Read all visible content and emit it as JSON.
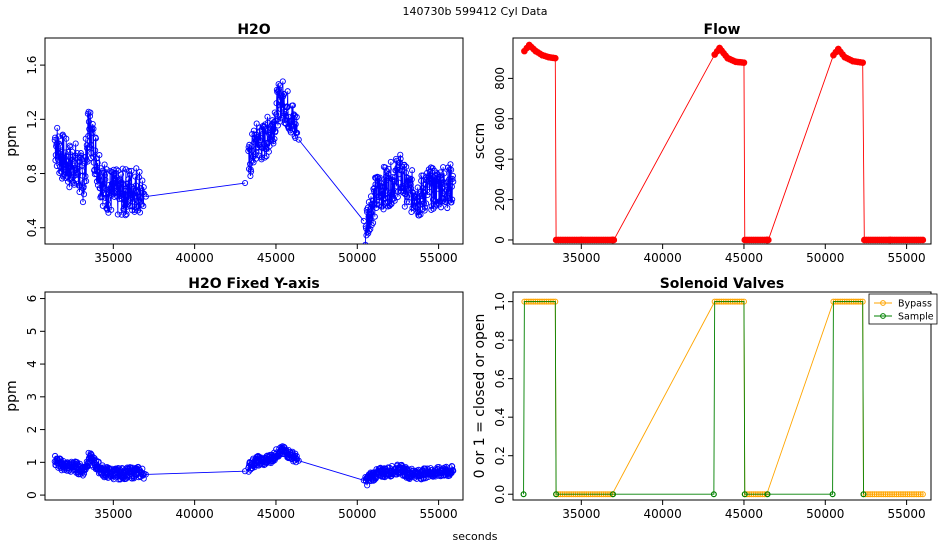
{
  "figure": {
    "suptitle": "140730b    599412   Cyl Data",
    "xlabel": "seconds"
  },
  "chart_data": [
    {
      "id": "h2o",
      "type": "scatter",
      "title": "H2O",
      "ylabel": "ppm",
      "xlabel": "",
      "xlim": [
        30800,
        56500
      ],
      "ylim": [
        0.28,
        1.8
      ],
      "xticks": [
        35000,
        40000,
        45000,
        50000,
        55000
      ],
      "yticks": [
        0.4,
        0.8,
        1.2,
        1.6
      ],
      "grid": false,
      "series": [
        {
          "color": "#0000ff",
          "marker": "open-circle",
          "line": true,
          "segments": [
            {
              "x": [
                31400,
                31700,
                32000,
                32300,
                32600,
                32900,
                33200,
                33500,
                33800,
                34100,
                34400,
                34700,
                35000,
                35300,
                35600,
                35900,
                36200,
                36500,
                36900
              ],
              "y": [
                1.05,
                0.95,
                0.9,
                0.85,
                0.88,
                0.8,
                0.75,
                1.15,
                1.0,
                0.85,
                0.72,
                0.68,
                0.66,
                0.65,
                0.66,
                0.67,
                0.68,
                0.7,
                0.65
              ]
            },
            {
              "x": [
                37000,
                43100
              ],
              "y": [
                0.63,
                0.73
              ]
            },
            {
              "x": [
                43300,
                43600,
                43900,
                44200,
                44500,
                44800,
                45100,
                45400,
                45700,
                46000,
                46300
              ],
              "y": [
                0.85,
                0.98,
                1.05,
                1.02,
                1.08,
                1.15,
                1.3,
                1.35,
                1.28,
                1.2,
                1.1
              ]
            },
            {
              "x": [
                46400,
                50400
              ],
              "y": [
                1.05,
                0.45
              ]
            },
            {
              "x": [
                50500,
                50800,
                51100,
                51400,
                51700,
                52000,
                52300,
                52600,
                52900,
                53200,
                53500,
                53800,
                54100,
                54400,
                54700,
                55000,
                55300,
                55600,
                55900
              ],
              "y": [
                0.4,
                0.55,
                0.62,
                0.68,
                0.7,
                0.72,
                0.75,
                0.8,
                0.72,
                0.65,
                0.68,
                0.62,
                0.66,
                0.7,
                0.68,
                0.7,
                0.72,
                0.7,
                0.74
              ]
            }
          ],
          "spread": [
            0.18,
            0.0,
            0.15,
            0.0,
            0.16
          ]
        }
      ]
    },
    {
      "id": "flow",
      "type": "line",
      "title": "Flow",
      "ylabel": "sccm",
      "xlabel": "",
      "xlim": [
        30800,
        56500
      ],
      "ylim": [
        -20,
        1000
      ],
      "xticks": [
        35000,
        40000,
        45000,
        50000,
        55000
      ],
      "yticks": [
        0,
        200,
        400,
        600,
        800
      ],
      "grid": false,
      "series": [
        {
          "color": "#ff0000",
          "marker": "filled-circle",
          "line": true,
          "x": [
            31500,
            31800,
            32200,
            32600,
            33000,
            33400,
            33450,
            35000,
            36900,
            37000,
            43200,
            43500,
            44000,
            44500,
            45000,
            45050,
            46400,
            46500,
            50500,
            50800,
            51200,
            51700,
            52300,
            52400,
            54000,
            56000
          ],
          "y": [
            935,
            965,
            935,
            915,
            905,
            900,
            0,
            0,
            0,
            0,
            918,
            950,
            900,
            882,
            878,
            0,
            0,
            0,
            915,
            945,
            905,
            885,
            878,
            0,
            0,
            0
          ]
        }
      ]
    },
    {
      "id": "h2o-fixed",
      "type": "scatter",
      "title": "H2O Fixed Y-axis",
      "ylabel": "ppm",
      "xlabel": "",
      "xlim": [
        30800,
        56500
      ],
      "ylim": [
        -0.15,
        6.2
      ],
      "xticks": [
        35000,
        40000,
        45000,
        50000,
        55000
      ],
      "yticks": [
        0,
        1,
        2,
        3,
        4,
        5,
        6
      ],
      "grid": false,
      "series": [
        {
          "color": "#0000ff",
          "marker": "open-circle",
          "line": true,
          "segments": [
            {
              "x": [
                31400,
                31700,
                32000,
                32300,
                32600,
                32900,
                33200,
                33500,
                33800,
                34100,
                34400,
                34700,
                35000,
                35300,
                35600,
                35900,
                36200,
                36500,
                36900
              ],
              "y": [
                1.05,
                0.95,
                0.9,
                0.85,
                0.88,
                0.8,
                0.75,
                1.15,
                1.0,
                0.85,
                0.72,
                0.68,
                0.66,
                0.65,
                0.66,
                0.67,
                0.68,
                0.7,
                0.65
              ]
            },
            {
              "x": [
                37000,
                43100
              ],
              "y": [
                0.63,
                0.73
              ]
            },
            {
              "x": [
                43300,
                43600,
                43900,
                44200,
                44500,
                44800,
                45100,
                45400,
                45700,
                46000,
                46300
              ],
              "y": [
                0.85,
                0.98,
                1.05,
                1.02,
                1.08,
                1.15,
                1.3,
                1.35,
                1.28,
                1.2,
                1.1
              ]
            },
            {
              "x": [
                46400,
                50400
              ],
              "y": [
                1.05,
                0.45
              ]
            },
            {
              "x": [
                50500,
                50800,
                51100,
                51400,
                51700,
                52000,
                52300,
                52600,
                52900,
                53200,
                53500,
                53800,
                54100,
                54400,
                54700,
                55000,
                55300,
                55600,
                55900
              ],
              "y": [
                0.4,
                0.55,
                0.62,
                0.68,
                0.7,
                0.72,
                0.75,
                0.8,
                0.72,
                0.65,
                0.68,
                0.62,
                0.66,
                0.7,
                0.68,
                0.7,
                0.72,
                0.7,
                0.74
              ]
            }
          ],
          "spread": [
            0.18,
            0.0,
            0.15,
            0.0,
            0.16
          ]
        }
      ]
    },
    {
      "id": "valves",
      "type": "line",
      "title": "Solenoid Valves",
      "ylabel": "0 or 1 = closed or open",
      "xlabel": "",
      "xlim": [
        30800,
        56500
      ],
      "ylim": [
        -0.03,
        1.05
      ],
      "xticks": [
        35000,
        40000,
        45000,
        50000,
        55000
      ],
      "yticks": [
        0.0,
        0.2,
        0.4,
        0.6,
        0.8,
        1.0
      ],
      "ytick_labels": [
        "0.0",
        "0.2",
        "0.4",
        "0.6",
        "0.8",
        "1.0"
      ],
      "grid": false,
      "legend": "top-right",
      "series": [
        {
          "name": "Bypass",
          "color": "#ffa500",
          "marker": "open-circle",
          "x": [
            31500,
            33400,
            33450,
            36900,
            43200,
            45000,
            45050,
            46400,
            50500,
            52300,
            52350,
            56000
          ],
          "y": [
            1,
            1,
            0,
            0,
            1,
            1,
            0,
            0,
            1,
            1,
            0,
            0
          ]
        },
        {
          "name": "Sample",
          "color": "#008000",
          "marker": "open-circle",
          "x": [
            31450,
            31500,
            33400,
            33450,
            36950,
            43150,
            43200,
            45000,
            45050,
            46450,
            50450,
            50500,
            52300,
            52350
          ],
          "y": [
            0,
            1,
            1,
            0,
            0,
            0,
            1,
            1,
            0,
            0,
            0,
            1,
            1,
            0
          ]
        }
      ]
    }
  ]
}
